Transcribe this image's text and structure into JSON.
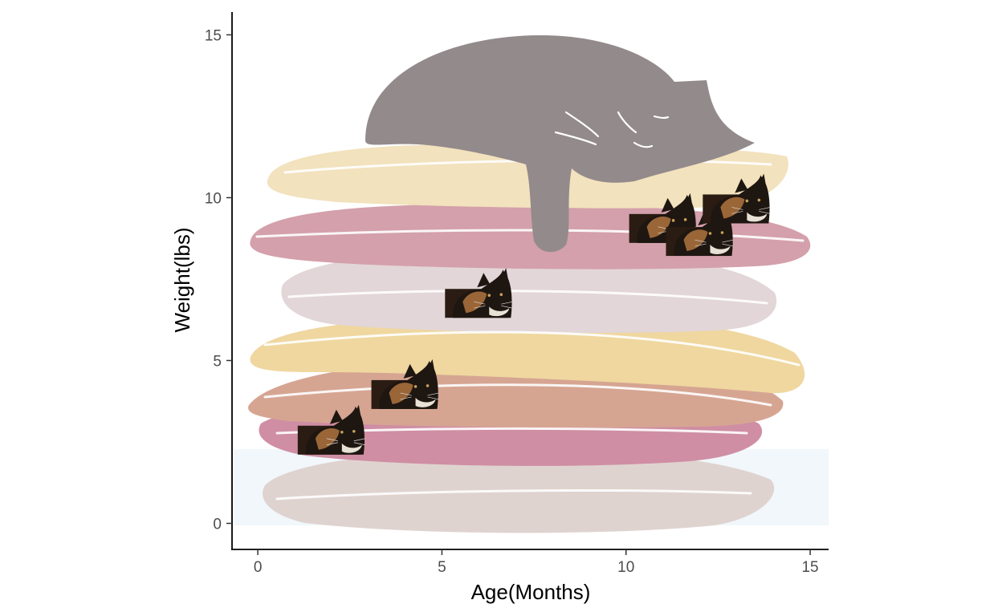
{
  "chart_data": {
    "type": "scatter",
    "title": "",
    "xlabel": "Age(Months)",
    "ylabel": "Weight(lbs)",
    "xlim": [
      -0.7,
      15.5
    ],
    "ylim": [
      -0.8,
      15.7
    ],
    "xticks": [
      0,
      5,
      10,
      15
    ],
    "yticks": [
      0,
      5,
      10,
      15
    ],
    "grid": false,
    "legend": "none",
    "background_image": "cat-on-pillows-illustration",
    "point_marker": "calico-cat-photo",
    "points": [
      {
        "x": 2,
        "y": 2.9
      },
      {
        "x": 4,
        "y": 4.3
      },
      {
        "x": 6,
        "y": 7.1
      },
      {
        "x": 11,
        "y": 9.4
      },
      {
        "x": 12,
        "y": 9.0
      },
      {
        "x": 13,
        "y": 10.0
      }
    ]
  },
  "colors": {
    "axis": "#000000",
    "tick_text": "#4d4d4d",
    "pillow_cream": "#f2e2bd",
    "pillow_pink": "#d4a0ab",
    "pillow_lavender": "#e2d6d8",
    "pillow_yellow": "#efd79f",
    "pillow_salmon": "#d6a592",
    "pillow_magenta": "#cf8ea3",
    "pillow_taupe": "#dfd3d0",
    "cat_grey": "#938a8c",
    "calico_dark": "#1e1611",
    "calico_orange": "#9a6637"
  }
}
